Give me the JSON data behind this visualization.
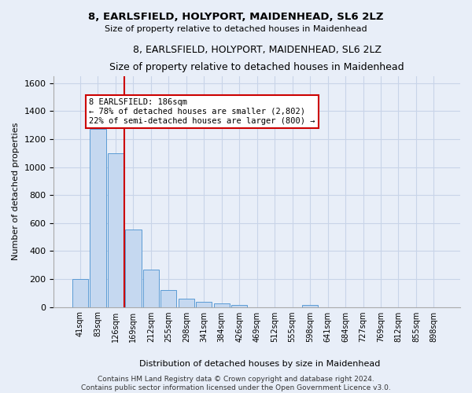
{
  "title1": "8, EARLSFIELD, HOLYPORT, MAIDENHEAD, SL6 2LZ",
  "title2": "Size of property relative to detached houses in Maidenhead",
  "xlabel": "Distribution of detached houses by size in Maidenhead",
  "ylabel": "Number of detached properties",
  "footer1": "Contains HM Land Registry data © Crown copyright and database right 2024.",
  "footer2": "Contains public sector information licensed under the Open Government Licence v3.0.",
  "annotation_line1": "8 EARLSFIELD: 186sqm",
  "annotation_line2": "← 78% of detached houses are smaller (2,802)",
  "annotation_line3": "22% of semi-detached houses are larger (800) →",
  "bar_categories": [
    "41sqm",
    "83sqm",
    "126sqm",
    "169sqm",
    "212sqm",
    "255sqm",
    "298sqm",
    "341sqm",
    "384sqm",
    "426sqm",
    "469sqm",
    "512sqm",
    "555sqm",
    "598sqm",
    "641sqm",
    "684sqm",
    "727sqm",
    "769sqm",
    "812sqm",
    "855sqm",
    "898sqm"
  ],
  "bar_values": [
    200,
    1270,
    1100,
    555,
    270,
    120,
    60,
    35,
    25,
    15,
    0,
    0,
    0,
    15,
    0,
    0,
    0,
    0,
    0,
    0,
    0
  ],
  "bar_color": "#c5d8f0",
  "bar_edge_color": "#5b9bd5",
  "vline_color": "#cc0000",
  "vline_x": 2.5,
  "annotation_box_color": "#cc0000",
  "annotation_fill": "#ffffff",
  "grid_color": "#c8d4e8",
  "bg_color": "#e8eef8",
  "ylim": [
    0,
    1650
  ],
  "yticks": [
    0,
    200,
    400,
    600,
    800,
    1000,
    1200,
    1400,
    1600
  ]
}
